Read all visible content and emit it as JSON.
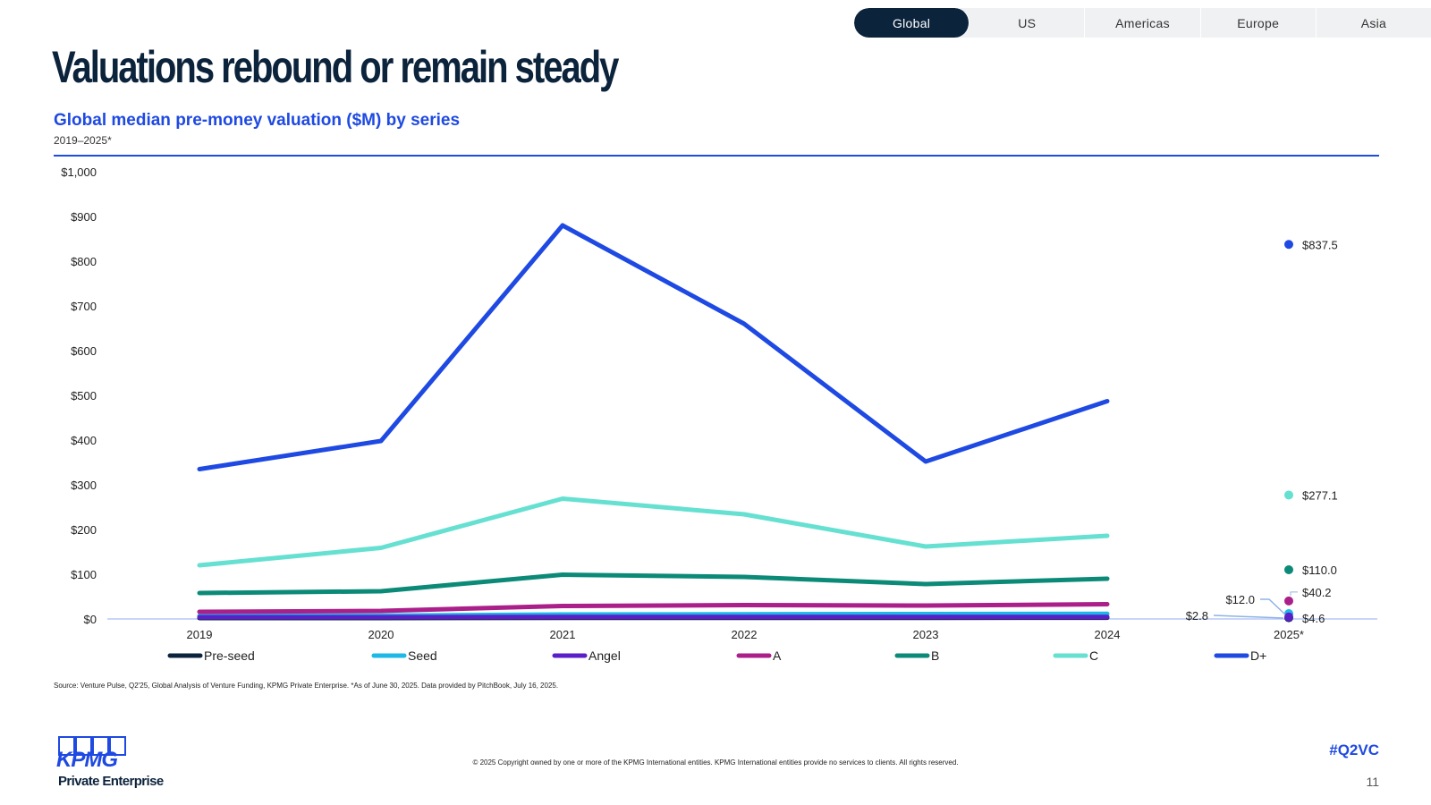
{
  "tabs": [
    {
      "label": "Global",
      "active": true
    },
    {
      "label": "US",
      "active": false
    },
    {
      "label": "Americas",
      "active": false
    },
    {
      "label": "Europe",
      "active": false
    },
    {
      "label": "Asia",
      "active": false
    }
  ],
  "header": {
    "title": "Valuations rebound or remain steady",
    "subtitle": "Global median pre-money valuation ($M) by series",
    "date_range": "2019–2025*"
  },
  "chart_data": {
    "type": "line",
    "title": "Global median pre-money valuation ($M) by series",
    "categories": [
      "2019",
      "2020",
      "2021",
      "2022",
      "2023",
      "2024",
      "2025*"
    ],
    "ylim": [
      0,
      1000
    ],
    "yticks": [
      0,
      100,
      200,
      300,
      400,
      500,
      600,
      700,
      800,
      900,
      1000
    ],
    "ytick_labels": [
      "$0",
      "$100",
      "$200",
      "$300",
      "$400",
      "$500",
      "$600",
      "$700",
      "$800",
      "$900",
      "$1,000"
    ],
    "grid": false,
    "legend_position": "bottom",
    "series": [
      {
        "name": "Pre-seed",
        "color": "#0c233c",
        "values": [
          2.0,
          2.0,
          2.4,
          2.5,
          2.6,
          2.7,
          2.8
        ],
        "last_label": "$2.8"
      },
      {
        "name": "Seed",
        "color": "#1cb8e8",
        "values": [
          7.0,
          7.5,
          10.0,
          10.5,
          11.0,
          11.5,
          12.0
        ],
        "last_label": "$12.0"
      },
      {
        "name": "Angel",
        "color": "#5a1fc8",
        "values": [
          4.0,
          4.0,
          4.5,
          4.5,
          4.5,
          4.5,
          4.6
        ],
        "last_label": "$4.6"
      },
      {
        "name": "A",
        "color": "#ab1f8a",
        "values": [
          16,
          18,
          29,
          31,
          30,
          33,
          40.2
        ],
        "last_label": "$40.2"
      },
      {
        "name": "B",
        "color": "#0c8a78",
        "values": [
          58,
          62,
          99,
          94,
          78,
          90,
          110.0
        ],
        "last_label": "$110.0"
      },
      {
        "name": "C",
        "color": "#65e0d1",
        "values": [
          120,
          159,
          269,
          234,
          162,
          186,
          277.1
        ],
        "last_label": "$277.1"
      },
      {
        "name": "D+",
        "color": "#1e49e2",
        "values": [
          335,
          398,
          880,
          660,
          352,
          487,
          837.5
        ],
        "last_label": "$837.5"
      }
    ]
  },
  "footer": {
    "source": "Source: Venture Pulse, Q2'25, Global Analysis of Venture Funding, KPMG Private Enterprise. *As of June 30, 2025. Data provided by PitchBook, July 16, 2025.",
    "copyright": "© 2025 Copyright owned by one or more of the KPMG International entities. KPMG International entities provide no services to clients. All rights reserved.",
    "hashtag": "#Q2VC",
    "page_number": "11",
    "logo_text": "KPMG",
    "logo_subtext": "Private Enterprise"
  }
}
